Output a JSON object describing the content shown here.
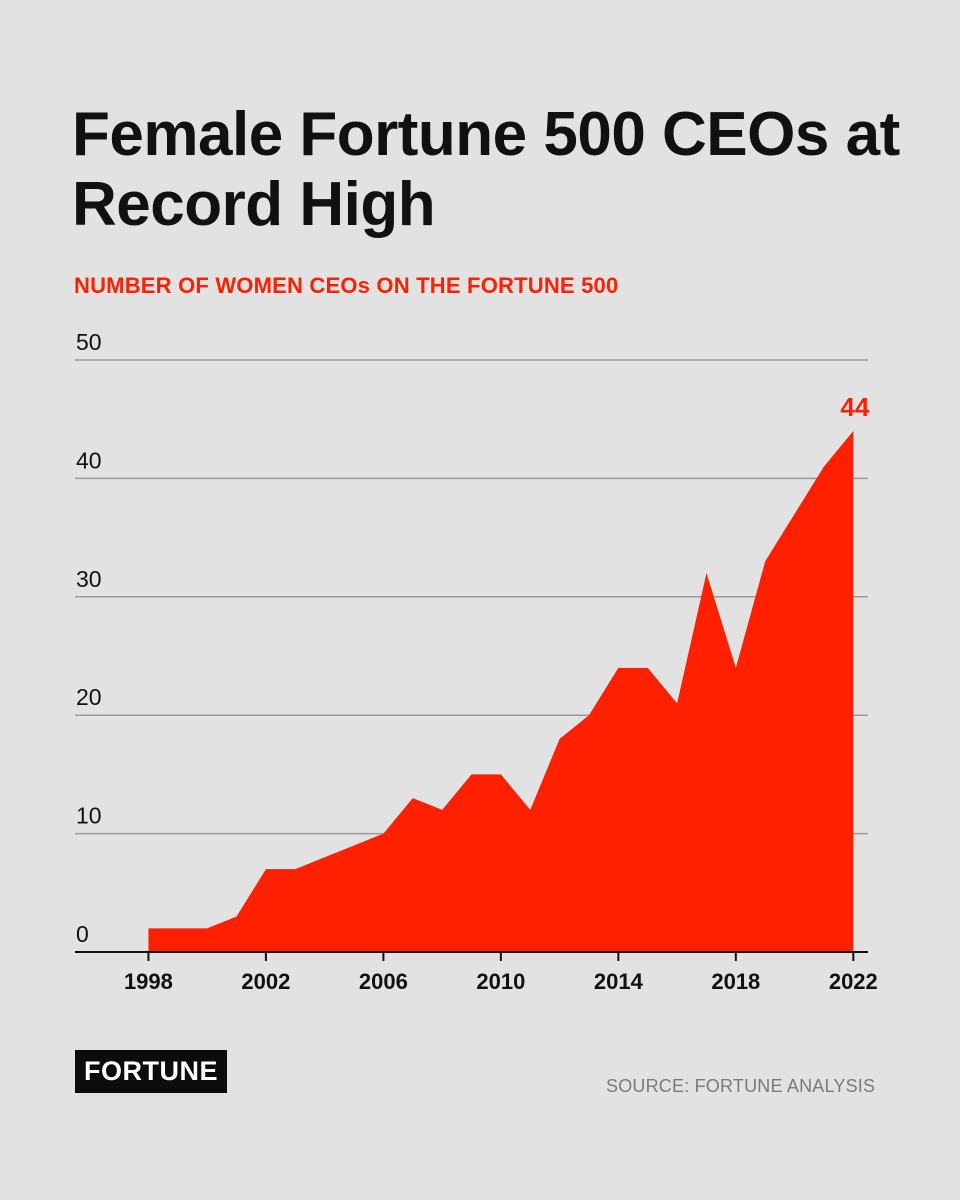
{
  "title": "Female Fortune 500 CEOs at Record High",
  "subtitle": "NUMBER OF WOMEN CEOs ON THE FORTUNE 500",
  "logo_text": "FORTUNE",
  "source": "SOURCE: FORTUNE ANALYSIS",
  "colors": {
    "background": "#e2e2e2",
    "area": "#ff2000",
    "text": "#111111",
    "grid": "#9a9a9a"
  },
  "chart_data": {
    "type": "area",
    "title": "",
    "xlabel": "",
    "ylabel": "",
    "x": [
      1998,
      1999,
      2000,
      2001,
      2002,
      2003,
      2004,
      2005,
      2006,
      2007,
      2008,
      2009,
      2010,
      2011,
      2012,
      2013,
      2014,
      2015,
      2016,
      2017,
      2018,
      2019,
      2020,
      2021,
      2022
    ],
    "series": [
      {
        "values": [
          2,
          2,
          2,
          3,
          7,
          7,
          8,
          9,
          10,
          13,
          12,
          15,
          15,
          12,
          18,
          20,
          24,
          24,
          21,
          32,
          24,
          33,
          37,
          41,
          44
        ]
      }
    ],
    "xlim": [
      1995.5,
      2022.5
    ],
    "ylim": [
      0,
      50
    ],
    "y_ticks": [
      "0",
      "10",
      "20",
      "30",
      "40",
      "50"
    ],
    "y_tick_values": [
      0,
      10,
      20,
      30,
      40,
      50
    ],
    "x_ticks": [
      "1998",
      "2002",
      "2006",
      "2010",
      "2014",
      "2018",
      "2022"
    ],
    "x_tick_values": [
      1998,
      2002,
      2006,
      2010,
      2014,
      2018,
      2022
    ],
    "data_labels": [
      {
        "x": 2022,
        "text": "44"
      }
    ],
    "grid": true,
    "legend": "none"
  }
}
